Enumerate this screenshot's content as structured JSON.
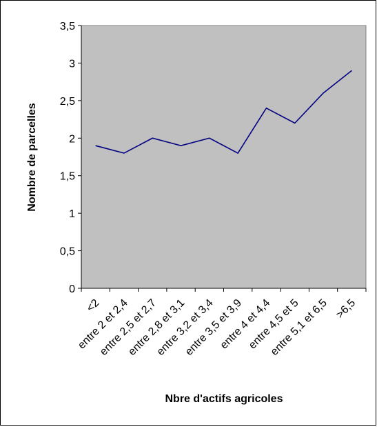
{
  "chart_data": {
    "type": "line",
    "categories": [
      "<2",
      "entre 2 et 2,4",
      "entre 2,5 et 2,7",
      "entre 2,8 et 3,1",
      "entre 3,2 et 3,4",
      "entre 3,5 et 3,9",
      "entre 4 et 4,4",
      "entre 4,5 et 5",
      "entre 5,1 et 6,5",
      ">6,5"
    ],
    "series": [
      {
        "values": [
          1.9,
          1.8,
          2.0,
          1.9,
          2.0,
          1.8,
          2.4,
          2.2,
          2.6,
          2.9
        ]
      }
    ],
    "xlabel": "Nbre d'actifs agricoles",
    "ylabel": "Nombre de parcelles",
    "ylim": [
      0,
      3.5
    ],
    "yticks": [
      "0",
      "0,5",
      "1",
      "1,5",
      "2",
      "2,5",
      "3",
      "3,5"
    ],
    "grid": false,
    "plot_background": "#c0c0c0",
    "line_color": "#000080"
  }
}
